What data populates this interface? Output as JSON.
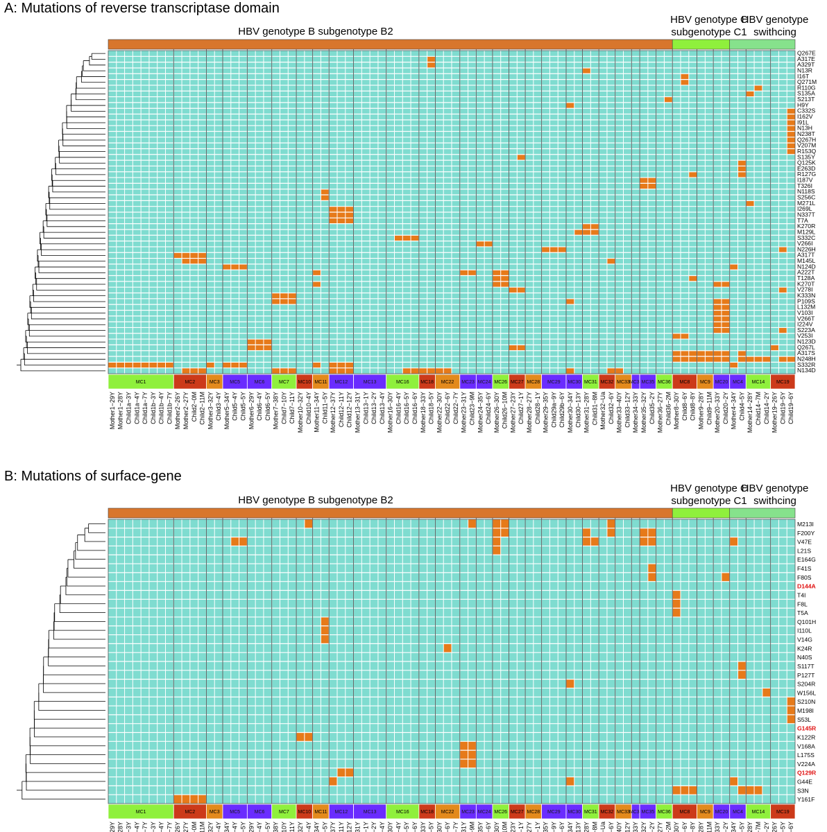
{
  "colors": {
    "cell_bg": "#7fdcd0",
    "cell_mut": "#e67a1a",
    "grid_line": "#ffffff",
    "band_b2": "#d8762c",
    "band_c1": "#8ff03c",
    "band_switch": "#86e28c",
    "group_green": "#8ff03c",
    "group_red": "#cc3a1a",
    "group_orange": "#e38a1c",
    "group_purple": "#6a2cff",
    "highlight_text": "#e01010"
  },
  "samples": [
    "Mother1−29Y",
    "Mother1−28Y",
    "Child1a−3Y",
    "Child1a−4Y",
    "Child1a−7Y",
    "Child1b−3Y",
    "Child1b−4Y",
    "Child1b−7Y",
    "Mother2−26Y",
    "Mother2−27Y",
    "Child2−0M",
    "Child2−11M",
    "Mother3−32Y",
    "Child3−4Y",
    "Mother5−34Y",
    "Child5−4Y",
    "Child5−5Y",
    "Mother6−29Y",
    "Child6−4Y",
    "Child6−5Y",
    "Mother7−38Y",
    "Child7−10Y",
    "Child7−11Y",
    "Mother10−32Y",
    "Child10−4Y",
    "Mother11−34Y",
    "Child11−5Y",
    "Mother12−37Y",
    "Child12−11Y",
    "Child12−12Y",
    "Mother13−31Y",
    "Child13−1Y",
    "Child13−2Y",
    "Child13−4Y",
    "Mother16−30Y",
    "Child16−4Y",
    "Child16−5Y",
    "Child16−6Y",
    "Mother18−33Y",
    "Child18−5Y",
    "Mother22−30Y",
    "Child22−6Y",
    "Child22−7Y",
    "Mother23−31Y",
    "Child23−9M",
    "Mother24−35Y",
    "Child24−6Y",
    "Mother26−30Y",
    "Child26−10M",
    "Mother27−23Y",
    "Child27−1Y",
    "Mother28−27Y",
    "Child28−1Y",
    "Mother29−35Y",
    "Child29a−9Y",
    "Child29b−6Y",
    "Mother30−34Y",
    "Child30−13Y",
    "Mother31−28Y",
    "Child31−8M",
    "Mother32−Ua",
    "Child32−6Y",
    "Mother33−40Y",
    "Child33−12Y",
    "Mother34−33Y",
    "Mother35−32Y",
    "Child35−2Y",
    "Mother36−27Y",
    "Child36−2M",
    "Mother8−30Y",
    "Child8−6Y",
    "Child8−8Y",
    "Mother9−28Y",
    "Child9−11M",
    "Mother20−33Y",
    "Child20−2Y",
    "Mother4−34Y",
    "Child4−5Y",
    "Mother14−28Y",
    "Child14−7M",
    "Child14−2Y",
    "Mother19−26Y",
    "Child19−5Y",
    "Child19−6Y"
  ],
  "panels": [
    {
      "title": "A: Mutations of reverse transcriptase domain",
      "band_labels": {
        "b2": "HBV genotype B subgenotype B2",
        "c1_line1": "HBV genotype C",
        "c1_line2": "subgenotype C1",
        "switch_line1": "HBV genotype",
        "switch_line2": "swithcing"
      },
      "groups": [
        {
          "label": "MC1",
          "n": 8,
          "color": "#8ff03c"
        },
        {
          "label": "MC2",
          "n": 4,
          "color": "#cc3a1a"
        },
        {
          "label": "MC3",
          "n": 2,
          "color": "#e38a1c"
        },
        {
          "label": "MC5",
          "n": 3,
          "color": "#6a2cff"
        },
        {
          "label": "MC6",
          "n": 3,
          "color": "#6a2cff"
        },
        {
          "label": "MC7",
          "n": 3,
          "color": "#8ff03c"
        },
        {
          "label": "MC10",
          "n": 2,
          "color": "#cc3a1a"
        },
        {
          "label": "MC11",
          "n": 2,
          "color": "#e38a1c"
        },
        {
          "label": "MC12",
          "n": 3,
          "color": "#6a2cff"
        },
        {
          "label": "MC13",
          "n": 4,
          "color": "#6a2cff"
        },
        {
          "label": "MC16",
          "n": 4,
          "color": "#8ff03c"
        },
        {
          "label": "MC18",
          "n": 2,
          "color": "#cc3a1a"
        },
        {
          "label": "MC22",
          "n": 3,
          "color": "#e38a1c"
        },
        {
          "label": "MC23",
          "n": 2,
          "color": "#6a2cff"
        },
        {
          "label": "MC24",
          "n": 2,
          "color": "#6a2cff"
        },
        {
          "label": "MC26",
          "n": 2,
          "color": "#8ff03c"
        },
        {
          "label": "MC27",
          "n": 2,
          "color": "#cc3a1a"
        },
        {
          "label": "MC28",
          "n": 2,
          "color": "#e38a1c"
        },
        {
          "label": "MC29",
          "n": 3,
          "color": "#6a2cff"
        },
        {
          "label": "MC30",
          "n": 2,
          "color": "#6a2cff"
        },
        {
          "label": "MC31",
          "n": 2,
          "color": "#8ff03c"
        },
        {
          "label": "MC32",
          "n": 2,
          "color": "#cc3a1a"
        },
        {
          "label": "MC33",
          "n": 2,
          "color": "#e38a1c"
        },
        {
          "label": "MC34",
          "n": 1,
          "color": "#6a2cff"
        },
        {
          "label": "MC35",
          "n": 2,
          "color": "#6a2cff"
        },
        {
          "label": "MC36",
          "n": 2,
          "color": "#8ff03c"
        },
        {
          "label": "MC8",
          "n": 3,
          "color": "#cc3a1a"
        },
        {
          "label": "MC9",
          "n": 2,
          "color": "#e38a1c"
        },
        {
          "label": "MC20",
          "n": 2,
          "color": "#6a2cff"
        },
        {
          "label": "MC4",
          "n": 2,
          "color": "#6a2cff"
        },
        {
          "label": "MC14",
          "n": 3,
          "color": "#8ff03c"
        },
        {
          "label": "MC19",
          "n": 3,
          "color": "#cc3a1a"
        }
      ],
      "rows": [
        {
          "label": "Q267E",
          "muts": []
        },
        {
          "label": "A317E",
          "muts": [
            39
          ]
        },
        {
          "label": "A329T",
          "muts": [
            39
          ]
        },
        {
          "label": "N13R",
          "muts": [
            58
          ]
        },
        {
          "label": "I16T",
          "muts": [
            70
          ]
        },
        {
          "label": "Q271M",
          "muts": [
            70
          ]
        },
        {
          "label": "R110G",
          "muts": [
            79
          ]
        },
        {
          "label": "S135A",
          "muts": [
            78
          ]
        },
        {
          "label": "S213T",
          "muts": [
            68
          ]
        },
        {
          "label": "H9Y",
          "muts": [
            56
          ]
        },
        {
          "label": "C332S",
          "muts": [
            83
          ]
        },
        {
          "label": "I162V",
          "muts": [
            83
          ]
        },
        {
          "label": "I91L",
          "muts": [
            83
          ]
        },
        {
          "label": "N13H",
          "muts": [
            83
          ]
        },
        {
          "label": "N238T",
          "muts": [
            83
          ]
        },
        {
          "label": "Q267H",
          "muts": [
            83
          ]
        },
        {
          "label": "V207M",
          "muts": [
            83
          ]
        },
        {
          "label": "R153Q",
          "muts": [
            83
          ]
        },
        {
          "label": "S135Y",
          "muts": [
            50
          ]
        },
        {
          "label": "Q125K",
          "muts": [
            77
          ]
        },
        {
          "label": "E263D",
          "muts": [
            77
          ]
        },
        {
          "label": "R127G",
          "muts": [
            71,
            77
          ]
        },
        {
          "label": "I187V",
          "muts": [
            65,
            66
          ]
        },
        {
          "label": "T326I",
          "muts": [
            65,
            66
          ]
        },
        {
          "label": "N118S",
          "muts": [
            26
          ]
        },
        {
          "label": "S256C",
          "muts": [
            26
          ]
        },
        {
          "label": "M271L",
          "muts": [
            78
          ]
        },
        {
          "label": "I269L",
          "muts": [
            27,
            28,
            29
          ]
        },
        {
          "label": "N337T",
          "muts": [
            27,
            28,
            29
          ]
        },
        {
          "label": "T7A",
          "muts": [
            27,
            28,
            29
          ]
        },
        {
          "label": "K270R",
          "muts": [
            58,
            59
          ]
        },
        {
          "label": "M129L",
          "muts": [
            57,
            58,
            59
          ]
        },
        {
          "label": "S332C",
          "muts": [
            35,
            36,
            37
          ]
        },
        {
          "label": "V266I",
          "muts": [
            45,
            46
          ]
        },
        {
          "label": "N226H",
          "muts": [
            53,
            54,
            55,
            82
          ]
        },
        {
          "label": "A317T",
          "muts": [
            8,
            9,
            10,
            11
          ]
        },
        {
          "label": "M145L",
          "muts": [
            9,
            10,
            11,
            61
          ]
        },
        {
          "label": "N124D",
          "muts": [
            14,
            15,
            16,
            76
          ]
        },
        {
          "label": "A222T",
          "muts": [
            25,
            43,
            44,
            47,
            48
          ]
        },
        {
          "label": "T128A",
          "muts": [
            47,
            48,
            71
          ]
        },
        {
          "label": "K270T",
          "muts": [
            25,
            47,
            48,
            74,
            75
          ]
        },
        {
          "label": "V278I",
          "muts": [
            49,
            50,
            82
          ]
        },
        {
          "label": "K333N",
          "muts": [
            20,
            21,
            22
          ]
        },
        {
          "label": "P109S",
          "muts": [
            20,
            21,
            22,
            56,
            74,
            75
          ]
        },
        {
          "label": "L132M",
          "muts": [
            74,
            75
          ]
        },
        {
          "label": "V103I",
          "muts": [
            74,
            75
          ]
        },
        {
          "label": "V266T",
          "muts": [
            74,
            75
          ]
        },
        {
          "label": "I224V",
          "muts": [
            74,
            75
          ]
        },
        {
          "label": "S223A",
          "muts": [
            74,
            75,
            82
          ]
        },
        {
          "label": "V253I",
          "muts": [
            69,
            70
          ]
        },
        {
          "label": "N123D",
          "muts": [
            17,
            18,
            19
          ]
        },
        {
          "label": "Q267L",
          "muts": [
            17,
            18,
            19,
            49,
            50,
            81
          ]
        },
        {
          "label": "A317S",
          "muts": [
            69,
            70,
            71,
            72,
            73,
            74,
            75,
            77
          ]
        },
        {
          "label": "N248H",
          "muts": [
            69,
            70,
            71,
            72,
            73,
            74,
            75,
            77,
            78,
            79,
            80,
            82,
            83
          ]
        },
        {
          "label": "S332R",
          "muts": [
            0,
            1,
            2,
            3,
            4,
            5,
            6,
            7,
            12,
            14,
            15,
            16,
            25,
            27,
            28,
            29,
            76
          ]
        },
        {
          "label": "N134D",
          "muts": [
            9,
            10,
            11,
            20,
            21,
            22,
            27,
            28,
            29,
            36,
            37,
            38,
            39,
            40,
            41,
            56,
            61,
            62
          ]
        }
      ]
    },
    {
      "title": "B: Mutations of surface-gene",
      "band_labels": {
        "b2": "HBV genotype B subgenotype B2",
        "c1_line1": "HBV genotype C",
        "c1_line2": "subgenotype C1",
        "switch_line1": "HBV genotype",
        "switch_line2": "swithcing"
      },
      "groups": [
        {
          "label": "MC1",
          "n": 8,
          "color": "#8ff03c"
        },
        {
          "label": "MC2",
          "n": 4,
          "color": "#cc3a1a"
        },
        {
          "label": "MC3",
          "n": 2,
          "color": "#e38a1c"
        },
        {
          "label": "MC5",
          "n": 3,
          "color": "#6a2cff"
        },
        {
          "label": "MC6",
          "n": 3,
          "color": "#6a2cff"
        },
        {
          "label": "MC7",
          "n": 3,
          "color": "#8ff03c"
        },
        {
          "label": "MC10",
          "n": 2,
          "color": "#cc3a1a"
        },
        {
          "label": "MC11",
          "n": 2,
          "color": "#e38a1c"
        },
        {
          "label": "MC12",
          "n": 3,
          "color": "#6a2cff"
        },
        {
          "label": "MC13",
          "n": 4,
          "color": "#6a2cff"
        },
        {
          "label": "MC16",
          "n": 4,
          "color": "#8ff03c"
        },
        {
          "label": "MC18",
          "n": 2,
          "color": "#cc3a1a"
        },
        {
          "label": "MC22",
          "n": 3,
          "color": "#e38a1c"
        },
        {
          "label": "MC23",
          "n": 2,
          "color": "#6a2cff"
        },
        {
          "label": "MC24",
          "n": 2,
          "color": "#6a2cff"
        },
        {
          "label": "MC26",
          "n": 2,
          "color": "#8ff03c"
        },
        {
          "label": "MC27",
          "n": 2,
          "color": "#cc3a1a"
        },
        {
          "label": "MC28",
          "n": 2,
          "color": "#e38a1c"
        },
        {
          "label": "MC29",
          "n": 3,
          "color": "#6a2cff"
        },
        {
          "label": "MC30",
          "n": 2,
          "color": "#6a2cff"
        },
        {
          "label": "MC31",
          "n": 2,
          "color": "#8ff03c"
        },
        {
          "label": "MC32",
          "n": 2,
          "color": "#cc3a1a"
        },
        {
          "label": "MC33",
          "n": 2,
          "color": "#e38a1c"
        },
        {
          "label": "MC34",
          "n": 1,
          "color": "#6a2cff"
        },
        {
          "label": "MC35",
          "n": 2,
          "color": "#6a2cff"
        },
        {
          "label": "MC36",
          "n": 2,
          "color": "#8ff03c"
        },
        {
          "label": "MC8",
          "n": 3,
          "color": "#cc3a1a"
        },
        {
          "label": "MC9",
          "n": 2,
          "color": "#e38a1c"
        },
        {
          "label": "MC20",
          "n": 2,
          "color": "#6a2cff"
        },
        {
          "label": "MC4",
          "n": 2,
          "color": "#6a2cff"
        },
        {
          "label": "MC14",
          "n": 3,
          "color": "#8ff03c"
        },
        {
          "label": "MC19",
          "n": 3,
          "color": "#cc3a1a"
        }
      ],
      "rows": [
        {
          "label": "M213I",
          "muts": [
            24,
            44,
            47,
            48,
            61
          ]
        },
        {
          "label": "F200Y",
          "muts": [
            47,
            48,
            58,
            61,
            65,
            66
          ]
        },
        {
          "label": "V47E",
          "muts": [
            15,
            16,
            47,
            58,
            59,
            65,
            66,
            76
          ]
        },
        {
          "label": "L21S",
          "muts": [
            47
          ]
        },
        {
          "label": "E164G",
          "muts": []
        },
        {
          "label": "F41S",
          "muts": [
            66
          ]
        },
        {
          "label": "F80S",
          "muts": [
            66,
            75
          ]
        },
        {
          "label": "D144A",
          "muts": [],
          "highlight": true
        },
        {
          "label": "T4I",
          "muts": [
            69
          ]
        },
        {
          "label": "F8L",
          "muts": [
            69
          ]
        },
        {
          "label": "T5A",
          "muts": [
            69
          ]
        },
        {
          "label": "Q101H",
          "muts": [
            26
          ]
        },
        {
          "label": "I110L",
          "muts": [
            26
          ]
        },
        {
          "label": "V14G",
          "muts": [
            26
          ]
        },
        {
          "label": "K24R",
          "muts": [
            41
          ]
        },
        {
          "label": "N40S",
          "muts": []
        },
        {
          "label": "S117T",
          "muts": [
            77
          ]
        },
        {
          "label": "P127T",
          "muts": [
            77
          ]
        },
        {
          "label": "S204R",
          "muts": [
            56
          ]
        },
        {
          "label": "W156L",
          "muts": [
            80
          ]
        },
        {
          "label": "S210N",
          "muts": [
            83
          ]
        },
        {
          "label": "M198I",
          "muts": [
            83
          ]
        },
        {
          "label": "S53L",
          "muts": [
            83
          ]
        },
        {
          "label": "G145R",
          "muts": [],
          "highlight": true
        },
        {
          "label": "K122R",
          "muts": [
            23,
            24
          ]
        },
        {
          "label": "V168A",
          "muts": [
            43,
            44
          ]
        },
        {
          "label": "L175S",
          "muts": [
            43,
            44
          ]
        },
        {
          "label": "V224A",
          "muts": [
            43,
            44
          ]
        },
        {
          "label": "Q129R",
          "muts": [
            28,
            29
          ],
          "highlight": true
        },
        {
          "label": "G44E",
          "muts": [
            27,
            56,
            76
          ]
        },
        {
          "label": "S3N",
          "muts": [
            69,
            70,
            71,
            77,
            78,
            79
          ]
        },
        {
          "label": "Y161F",
          "muts": [
            8,
            9,
            10,
            11
          ]
        }
      ]
    }
  ]
}
